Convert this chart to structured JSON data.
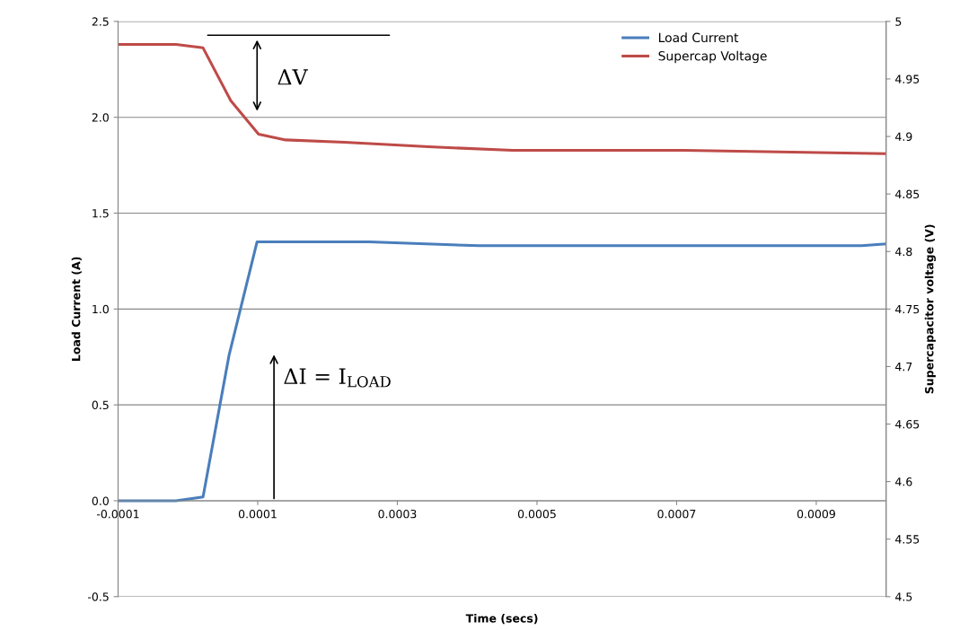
{
  "chart_data": {
    "type": "line",
    "xlabel": "Time (secs)",
    "ylabel": "Load Current (A)",
    "y2label": "Supercapacitor voltage (V)",
    "xlim": [
      -0.0001,
      0.001
    ],
    "xticks": [
      -0.0001,
      0.0001,
      0.0003,
      0.0005,
      0.0007,
      0.0009
    ],
    "ylim": [
      -0.5,
      2.5
    ],
    "yticks": [
      -0.5,
      {
        "value": 0,
        "label": "0.0"
      },
      0.5,
      {
        "value": 1,
        "label": "1.0"
      },
      1.5,
      {
        "value": 2,
        "label": "2.0"
      },
      2.5
    ],
    "y2lim": [
      4.5,
      5
    ],
    "y2ticks": [
      4.5,
      4.55,
      4.6,
      4.65,
      4.7,
      4.75,
      4.8,
      4.85,
      4.9,
      4.95,
      5
    ],
    "grid": "y",
    "legend": "top right",
    "marker": "none",
    "line_style": "solid",
    "annotations": [
      "ΔV",
      "ΔI = I$_{LOAD}$"
    ],
    "series": [
      {
        "name": "Load Current",
        "color": "#4a7ebb",
        "x": [
          -0.0001,
          -1.7e-05,
          2.17e-05,
          5.9e-05,
          9.9e-05,
          0.00026,
          0.000417,
          0.000965,
          0.001
        ],
        "values": [
          0,
          0,
          0.02,
          0.76,
          1.35,
          1.35,
          1.33,
          1.33,
          1.34
        ]
      },
      {
        "name": "Supercap Voltage",
        "color": "#be4b48",
        "axis": "y2",
        "x": [
          -0.0001,
          -1.7e-05,
          2.17e-05,
          6.15e-05,
          0.0001012,
          0.00014,
          0.000224,
          0.000345,
          0.000465,
          0.000706,
          0.001
        ],
        "values": [
          4.98,
          4.98,
          4.977,
          4.931,
          4.902,
          4.897,
          4.895,
          4.891,
          4.888,
          4.888,
          4.885
        ]
      }
    ]
  }
}
